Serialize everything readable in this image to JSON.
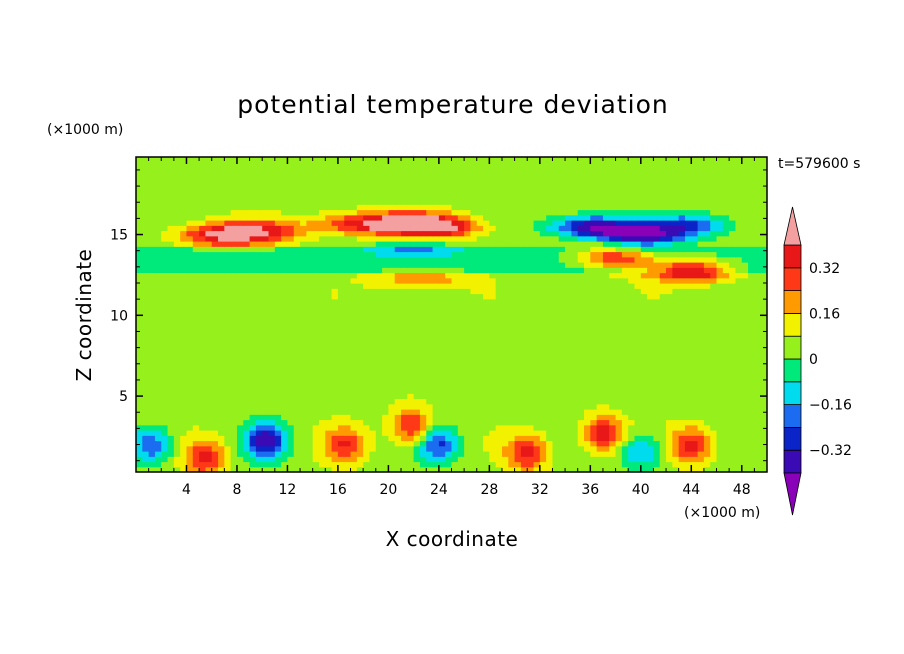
{
  "chart_data": {
    "type": "heatmap",
    "title": "potential temperature deviation",
    "xlabel": "X coordinate",
    "ylabel": "Z coordinate",
    "x_unit": "(×1000 m)",
    "y_unit": "(×1000 m)",
    "time_label": "t=579600 s",
    "xlim": [
      0,
      50
    ],
    "ylim": [
      0.3,
      19.8
    ],
    "x_ticks": [
      "4",
      "8",
      "12",
      "16",
      "20",
      "24",
      "28",
      "32",
      "36",
      "40",
      "44",
      "48"
    ],
    "y_ticks": [
      "5",
      "10",
      "15"
    ],
    "colorbar": {
      "levels": [
        -0.4,
        -0.32,
        -0.24,
        -0.16,
        -0.08,
        0,
        0.08,
        0.16,
        0.24,
        0.32,
        0.4
      ],
      "labels": [
        "0.32",
        "0.16",
        "0",
        "−0.16",
        "−0.32"
      ],
      "colors": [
        "#8a00b8",
        "#3a0ab5",
        "#0a24c8",
        "#1b6cf0",
        "#00dcee",
        "#00ea7c",
        "#96f01c",
        "#f2f200",
        "#ff9a00",
        "#ff3818",
        "#e81818",
        "#f4a0a0"
      ]
    },
    "features": [
      {
        "x": 6.5,
        "z": 15.0,
        "value": 0.34
      },
      {
        "x": 10,
        "z": 15.2,
        "value": 0.28
      },
      {
        "x": 17,
        "z": 15.7,
        "value": 0.24
      },
      {
        "x": 21,
        "z": 15.7,
        "value": 0.36
      },
      {
        "x": 24,
        "z": 15.5,
        "value": 0.38
      },
      {
        "x": 22,
        "z": 14.3,
        "value": -0.18
      },
      {
        "x": 36,
        "z": 15.5,
        "value": -0.42
      },
      {
        "x": 40,
        "z": 15.0,
        "value": -0.44
      },
      {
        "x": 44,
        "z": 15.6,
        "value": -0.3
      },
      {
        "x": 38,
        "z": 13.6,
        "value": 0.33
      },
      {
        "x": 44,
        "z": 12.8,
        "value": 0.4
      },
      {
        "x": 22.5,
        "z": 12.3,
        "value": 0.2
      },
      {
        "x": 1.2,
        "z": 2.0,
        "value": -0.3
      },
      {
        "x": 5.5,
        "z": 1.2,
        "value": 0.3
      },
      {
        "x": 10.3,
        "z": 2.3,
        "value": -0.42
      },
      {
        "x": 16.5,
        "z": 2.0,
        "value": 0.26
      },
      {
        "x": 21.8,
        "z": 3.2,
        "value": 0.3
      },
      {
        "x": 24,
        "z": 2.0,
        "value": -0.3
      },
      {
        "x": 31,
        "z": 1.5,
        "value": 0.3
      },
      {
        "x": 37,
        "z": 2.7,
        "value": 0.33
      },
      {
        "x": 40,
        "z": 1.6,
        "value": -0.24
      },
      {
        "x": 44,
        "z": 2.0,
        "value": 0.3
      }
    ]
  }
}
